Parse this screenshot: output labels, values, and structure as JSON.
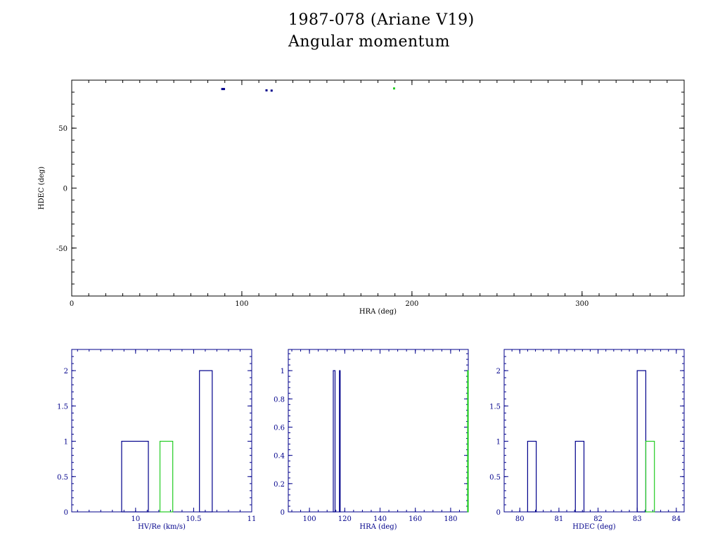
{
  "title": "1987-078 (Ariane V19)",
  "subtitle": "Angular momentum",
  "colors": {
    "axes_main": "#000000",
    "axes_hist": "#00008b",
    "blue": "#00008b",
    "green": "#22cc22"
  },
  "chart_data": [
    {
      "type": "scatter",
      "xlabel": "HRA (deg)",
      "ylabel": "HDEC (deg)",
      "xlim": [
        0,
        360
      ],
      "ylim": [
        -90,
        90
      ],
      "xticks": [
        0,
        100,
        200,
        300
      ],
      "yticks": [
        -50,
        0,
        50
      ],
      "grid": false,
      "points": [
        {
          "x": 88.5,
          "y": 82.6,
          "color": "blue"
        },
        {
          "x": 89.5,
          "y": 82.6,
          "color": "blue"
        },
        {
          "x": 114.5,
          "y": 81.5,
          "color": "blue"
        },
        {
          "x": 117.5,
          "y": 81.3,
          "color": "blue"
        },
        {
          "x": 189.5,
          "y": 83.1,
          "color": "green"
        }
      ]
    },
    {
      "type": "bar",
      "xlabel": "HV/Re (km/s)",
      "xlim": [
        9.45,
        11
      ],
      "ylim": [
        0,
        2.3
      ],
      "xticks": [
        "10",
        "10.5",
        "11"
      ],
      "yticks": [
        "0",
        "0.5",
        "1",
        "1.5",
        "2"
      ],
      "bins": [
        {
          "x0": 9.88,
          "x1": 10.11,
          "count": 1,
          "color": "blue"
        },
        {
          "x0": 10.21,
          "x1": 10.32,
          "count": 1,
          "color": "green"
        },
        {
          "x0": 10.55,
          "x1": 10.66,
          "count": 2,
          "color": "blue"
        }
      ]
    },
    {
      "type": "bar",
      "xlabel": "HRA (deg)",
      "xlim": [
        88,
        190
      ],
      "ylim": [
        0,
        1.15
      ],
      "xticks": [
        "100",
        "120",
        "140",
        "160",
        "180"
      ],
      "yticks": [
        "0",
        "0.2",
        "0.4",
        "0.6",
        "0.8",
        "1"
      ],
      "bins": [
        {
          "x0": 113.5,
          "x1": 114.5,
          "count": 1,
          "color": "blue"
        },
        {
          "x0": 117.0,
          "x1": 117.3,
          "count": 1,
          "color": "blue"
        },
        {
          "x0": 189.6,
          "x1": 190.0,
          "count": 1,
          "color": "green"
        }
      ]
    },
    {
      "type": "bar",
      "xlabel": "HDEC (deg)",
      "xlim": [
        79.6,
        84.2
      ],
      "ylim": [
        0,
        2.3
      ],
      "xticks": [
        "80",
        "81",
        "82",
        "83",
        "84"
      ],
      "yticks": [
        "0",
        "0.5",
        "1",
        "1.5",
        "2"
      ],
      "bins": [
        {
          "x0": 80.2,
          "x1": 80.42,
          "count": 1,
          "color": "blue"
        },
        {
          "x0": 81.42,
          "x1": 81.64,
          "count": 1,
          "color": "blue"
        },
        {
          "x0": 83.0,
          "x1": 83.22,
          "count": 2,
          "color": "blue"
        },
        {
          "x0": 83.22,
          "x1": 83.44,
          "count": 1,
          "color": "green"
        }
      ]
    }
  ]
}
